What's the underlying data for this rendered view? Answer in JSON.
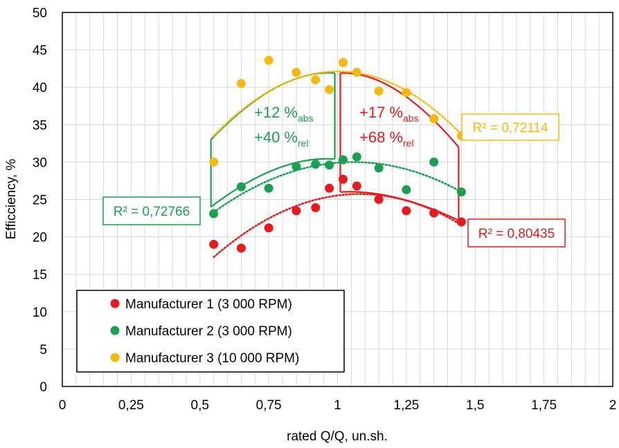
{
  "chart_data": {
    "type": "scatter",
    "xlabel": "rated Q/Q, un.sh.",
    "ylabel": "Efficciency, %",
    "xlim": [
      0,
      2
    ],
    "ylim": [
      0,
      50
    ],
    "x_ticks": [
      0,
      0.25,
      0.5,
      0.75,
      1,
      1.25,
      1.5,
      1.75,
      2
    ],
    "x_tick_labels": [
      "0",
      "0,25",
      "0,5",
      "0,75",
      "1",
      "1,25",
      "1,5",
      "1,75",
      "2"
    ],
    "y_ticks": [
      0,
      5,
      10,
      15,
      20,
      25,
      30,
      35,
      40,
      45,
      50
    ],
    "y_tick_labels": [
      "0",
      "5",
      "10",
      "15",
      "20",
      "25",
      "30",
      "35",
      "40",
      "45",
      "50"
    ],
    "grid": true,
    "legend_position": "bottom-left",
    "series": [
      {
        "name": "Manufacturer 1 (3 000 RPM)",
        "color": "#e8191c",
        "points": [
          [
            0.55,
            19.0
          ],
          [
            0.65,
            18.5
          ],
          [
            0.75,
            21.2
          ],
          [
            0.85,
            23.5
          ],
          [
            0.92,
            23.9
          ],
          [
            0.97,
            26.5
          ],
          [
            1.02,
            27.7
          ],
          [
            1.07,
            26.8
          ],
          [
            1.15,
            25.0
          ],
          [
            1.25,
            23.5
          ],
          [
            1.35,
            23.2
          ],
          [
            1.45,
            22.0
          ]
        ],
        "trendline": {
          "r_squared_label": "R² = 0,80435",
          "peak_x": 1.05,
          "peak_y": 25.7,
          "start_x": 0.55,
          "start_y": 17.3,
          "end_x": 1.45,
          "end_y": 21.6
        }
      },
      {
        "name": "Manufacturer 2 (3 000 RPM)",
        "color": "#1aa050",
        "points": [
          [
            0.55,
            23.1
          ],
          [
            0.65,
            26.7
          ],
          [
            0.75,
            26.5
          ],
          [
            0.85,
            29.4
          ],
          [
            0.92,
            29.7
          ],
          [
            0.97,
            29.6
          ],
          [
            1.02,
            30.3
          ],
          [
            1.07,
            30.7
          ],
          [
            1.15,
            29.2
          ],
          [
            1.25,
            26.3
          ],
          [
            1.35,
            30.0
          ],
          [
            1.45,
            26.0
          ]
        ],
        "trendline": {
          "r_squared_label": "R² = 0,72766",
          "peak_x": 1.05,
          "peak_y": 30.0,
          "start_x": 0.55,
          "start_y": 23.3,
          "end_x": 1.45,
          "end_y": 26.0
        }
      },
      {
        "name": "Manufacturer 3 (10 000 RPM)",
        "color": "#f6b90f",
        "points": [
          [
            0.55,
            30.0
          ],
          [
            0.65,
            40.5
          ],
          [
            0.75,
            43.6
          ],
          [
            0.85,
            42.0
          ],
          [
            0.92,
            41.0
          ],
          [
            0.97,
            39.7
          ],
          [
            1.02,
            43.3
          ],
          [
            1.07,
            42.0
          ],
          [
            1.15,
            39.5
          ],
          [
            1.25,
            39.3
          ],
          [
            1.35,
            35.8
          ],
          [
            1.45,
            33.5
          ]
        ],
        "trendline": {
          "r_squared_label": "R² = 0,72114",
          "peak_x": 0.98,
          "peak_y": 42.1,
          "start_x": 0.55,
          "start_y": 33.5,
          "end_x": 1.45,
          "end_y": 33.7
        }
      }
    ],
    "annotations": {
      "green_region": {
        "color": "#1aa050",
        "line1": "+12 %",
        "line1_sub": "abs",
        "line2": "+40 %",
        "line2_sub": "rel",
        "left_x": 0.54,
        "right_x": 0.99,
        "top_left_y": 33.0,
        "bottom_left_y": 24.0,
        "top_right_y": 41.9,
        "bottom_right_y": 30.4
      },
      "red_region": {
        "color": "#e8191c",
        "line1": "+17 %",
        "line1_sub": "abs",
        "line2": "+68 %",
        "line2_sub": "rel",
        "left_x": 1.01,
        "right_x": 1.44,
        "top_left_y": 41.9,
        "bottom_left_y": 26.0,
        "top_right_y": 32.0,
        "bottom_right_y": 22.2
      }
    }
  }
}
